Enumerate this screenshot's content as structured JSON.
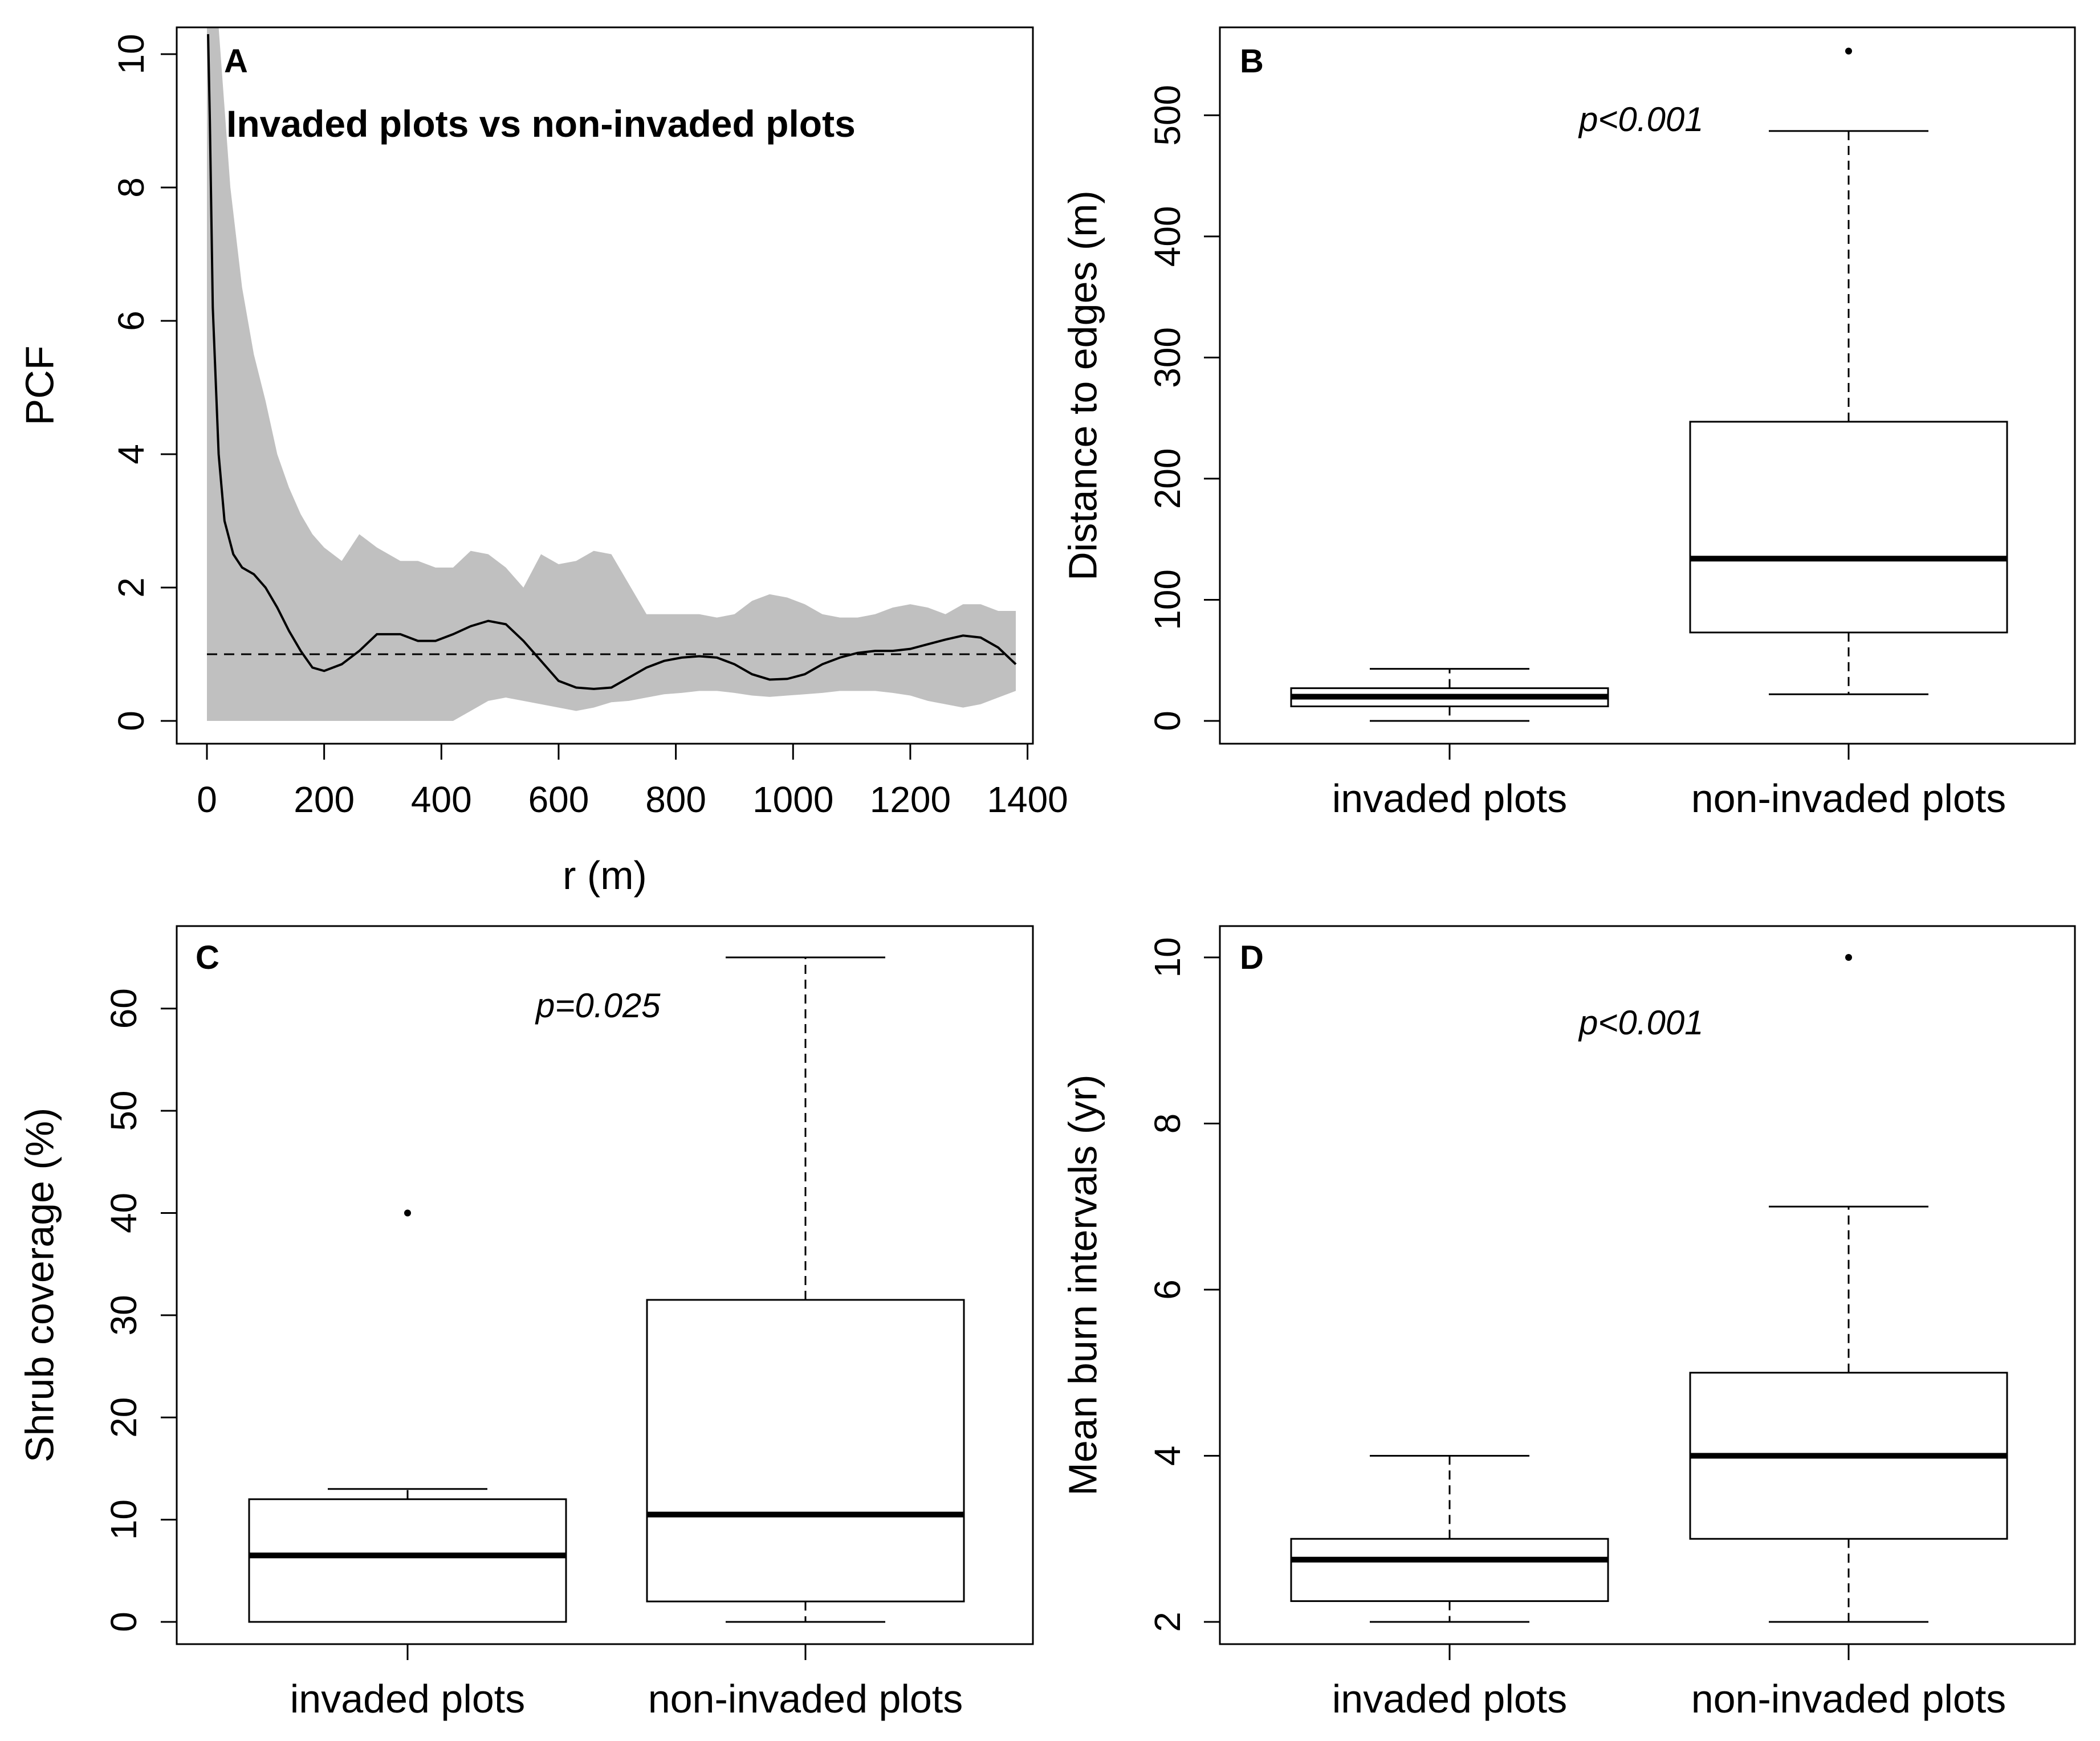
{
  "chart_data": [
    {
      "panel": "A",
      "type": "line",
      "title": "Invaded plots vs non-invaded plots",
      "xlabel": "r (m)",
      "ylabel": "PCF",
      "xlim": [
        0,
        1380
      ],
      "ylim": [
        0,
        10
      ],
      "xticks": [
        "0",
        "200",
        "400",
        "600",
        "800",
        "1000",
        "1200",
        "1400"
      ],
      "yticks": [
        "0",
        "2",
        "4",
        "6",
        "8",
        "10"
      ],
      "reference_line": 1,
      "series": [
        {
          "name": "PCF",
          "x": [
            2,
            5,
            10,
            20,
            30,
            45,
            60,
            80,
            100,
            120,
            140,
            160,
            180,
            200,
            230,
            260,
            290,
            330,
            360,
            390,
            420,
            450,
            480,
            510,
            540,
            570,
            600,
            630,
            660,
            690,
            720,
            750,
            780,
            810,
            840,
            870,
            900,
            930,
            960,
            990,
            1020,
            1050,
            1080,
            1110,
            1140,
            1170,
            1200,
            1230,
            1260,
            1290,
            1320,
            1350,
            1380
          ],
          "y": [
            10.3,
            9.0,
            6.2,
            4.0,
            3.0,
            2.5,
            2.3,
            2.2,
            2.0,
            1.7,
            1.35,
            1.05,
            0.8,
            0.75,
            0.85,
            1.05,
            1.3,
            1.3,
            1.2,
            1.2,
            1.3,
            1.42,
            1.5,
            1.45,
            1.2,
            0.9,
            0.6,
            0.5,
            0.48,
            0.5,
            0.65,
            0.8,
            0.9,
            0.95,
            0.97,
            0.95,
            0.85,
            0.7,
            0.62,
            0.63,
            0.7,
            0.85,
            0.95,
            1.02,
            1.05,
            1.05,
            1.08,
            1.15,
            1.22,
            1.28,
            1.25,
            1.1,
            0.85
          ]
        }
      ],
      "envelope": {
        "x": [
          0,
          20,
          40,
          60,
          80,
          100,
          120,
          140,
          160,
          180,
          200,
          230,
          260,
          290,
          330,
          360,
          390,
          420,
          450,
          480,
          510,
          540,
          570,
          600,
          630,
          660,
          690,
          720,
          750,
          780,
          810,
          840,
          870,
          900,
          930,
          960,
          990,
          1020,
          1050,
          1080,
          1110,
          1140,
          1170,
          1200,
          1230,
          1260,
          1290,
          1320,
          1350,
          1380
        ],
        "upper": [
          10.5,
          10.5,
          8.0,
          6.5,
          5.5,
          4.8,
          4.0,
          3.5,
          3.1,
          2.8,
          2.6,
          2.4,
          2.8,
          2.6,
          2.4,
          2.4,
          2.3,
          2.3,
          2.55,
          2.5,
          2.3,
          2.0,
          2.5,
          2.35,
          2.4,
          2.55,
          2.5,
          2.05,
          1.6,
          1.6,
          1.6,
          1.6,
          1.55,
          1.6,
          1.8,
          1.9,
          1.85,
          1.75,
          1.6,
          1.55,
          1.55,
          1.6,
          1.7,
          1.75,
          1.7,
          1.6,
          1.75,
          1.75,
          1.65,
          1.65
        ],
        "lower": [
          0,
          0,
          0,
          0,
          0,
          0,
          0,
          0,
          0,
          0,
          0,
          0,
          0,
          0,
          0,
          0,
          0,
          0,
          0.15,
          0.3,
          0.35,
          0.3,
          0.25,
          0.2,
          0.15,
          0.2,
          0.28,
          0.3,
          0.35,
          0.4,
          0.42,
          0.45,
          0.45,
          0.42,
          0.38,
          0.36,
          0.38,
          0.4,
          0.42,
          0.45,
          0.45,
          0.45,
          0.42,
          0.38,
          0.3,
          0.25,
          0.2,
          0.25,
          0.35,
          0.45
        ]
      }
    },
    {
      "panel": "B",
      "type": "box",
      "ylabel": "Distance to edges (m)",
      "ylim": [
        0,
        550
      ],
      "yticks": [
        "0",
        "100",
        "200",
        "300",
        "400",
        "500"
      ],
      "categories": [
        "invaded plots",
        "non-invaded plots"
      ],
      "annotation": "p<0.001",
      "boxes": [
        {
          "name": "invaded plots",
          "whisker_low": 0,
          "q1": 12,
          "median": 20,
          "q3": 27,
          "whisker_high": 43,
          "outliers": []
        },
        {
          "name": "non-invaded plots",
          "whisker_low": 22,
          "q1": 73,
          "median": 134,
          "q3": 247,
          "whisker_high": 487,
          "outliers": [
            553
          ]
        }
      ]
    },
    {
      "panel": "C",
      "type": "box",
      "ylabel": "Shrub coverage (%)",
      "ylim": [
        0,
        65
      ],
      "yticks": [
        "0",
        "10",
        "20",
        "30",
        "40",
        "50",
        "60"
      ],
      "categories": [
        "invaded plots",
        "non-invaded plots"
      ],
      "annotation": "p=0.025",
      "boxes": [
        {
          "name": "invaded plots",
          "whisker_low": 0,
          "q1": 0,
          "median": 6.5,
          "q3": 12,
          "whisker_high": 13,
          "outliers": [
            40
          ]
        },
        {
          "name": "non-invaded plots",
          "whisker_low": 0,
          "q1": 2,
          "median": 10.5,
          "q3": 31.5,
          "whisker_high": 65,
          "outliers": []
        }
      ]
    },
    {
      "panel": "D",
      "type": "box",
      "ylabel": "Mean burn intervals (yr)",
      "ylim": [
        2,
        10
      ],
      "yticks": [
        "2",
        "4",
        "6",
        "8",
        "10"
      ],
      "categories": [
        "invaded plots",
        "non-invaded plots"
      ],
      "annotation": "p<0.001",
      "boxes": [
        {
          "name": "invaded plots",
          "whisker_low": 2,
          "q1": 2.25,
          "median": 2.75,
          "q3": 3,
          "whisker_high": 4,
          "outliers": []
        },
        {
          "name": "non-invaded plots",
          "whisker_low": 2,
          "q1": 3,
          "median": 4,
          "q3": 5,
          "whisker_high": 7,
          "outliers": [
            10
          ]
        }
      ]
    }
  ]
}
